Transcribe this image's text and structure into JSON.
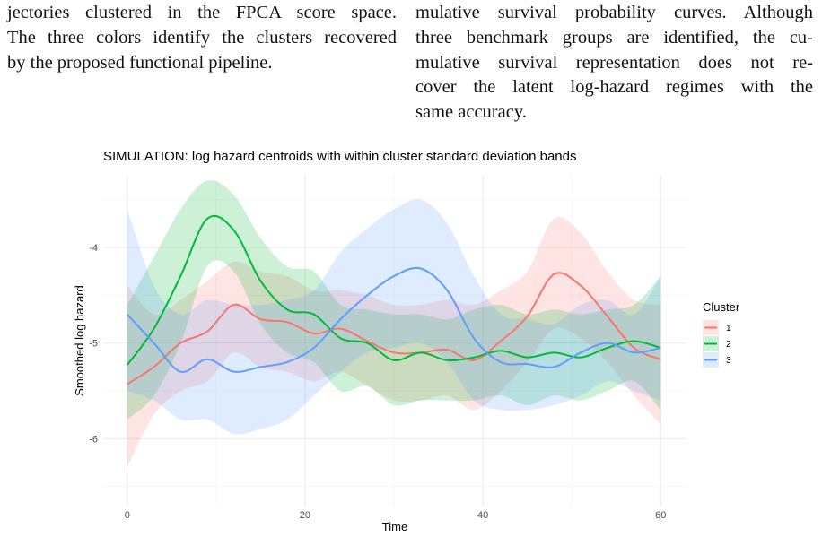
{
  "text": {
    "left_lines": [
      "jectories clustered in the FPCA score space.",
      "The three colors identify the clusters recovered",
      "by the proposed functional pipeline."
    ],
    "right_lines": [
      "mulative survival probability curves. Although",
      "three benchmark groups are identified, the cu-",
      "mulative survival representation does not re-",
      "cover the latent log-hazard regimes with the",
      "same accuracy."
    ]
  },
  "chart_data": {
    "type": "line",
    "title": "SIMULATION: log hazard centroids with within cluster standard deviation bands",
    "x_label": "Time",
    "y_label": "Smoothed log hazard",
    "legend_title": "Cluster",
    "legend_position": "right",
    "grid": true,
    "x": [
      0,
      3,
      6,
      9,
      12,
      15,
      18,
      21,
      24,
      27,
      30,
      33,
      36,
      39,
      42,
      45,
      48,
      51,
      54,
      57,
      60
    ],
    "xlim": [
      -2.7,
      62.9
    ],
    "xticks": [
      0,
      20,
      40,
      60
    ],
    "x_minor_grid": [
      10,
      30,
      50
    ],
    "ylim": [
      -6.71,
      -3.24
    ],
    "yticks": [
      -6,
      -5,
      -4
    ],
    "y_minor_grid": [
      -6.5,
      -5.5,
      -4.5,
      -3.5
    ],
    "series": [
      {
        "name": "1",
        "color": "#F8766D",
        "values": [
          -5.43,
          -5.25,
          -5.0,
          -4.88,
          -4.6,
          -4.75,
          -4.78,
          -4.9,
          -4.85,
          -4.98,
          -5.1,
          -5.1,
          -5.07,
          -5.18,
          -4.98,
          -4.72,
          -4.28,
          -4.4,
          -4.72,
          -5.05,
          -5.17
        ],
        "upper": [
          -4.4,
          -4.7,
          -4.55,
          -4.35,
          -4.15,
          -4.25,
          -4.3,
          -4.45,
          -4.45,
          -4.5,
          -4.6,
          -4.6,
          -4.55,
          -4.6,
          -4.45,
          -4.25,
          -3.7,
          -3.85,
          -4.25,
          -4.55,
          -4.6
        ],
        "lower": [
          -6.3,
          -5.75,
          -5.5,
          -5.4,
          -5.1,
          -5.25,
          -5.3,
          -5.4,
          -5.3,
          -5.45,
          -5.6,
          -5.6,
          -5.55,
          -5.7,
          -5.5,
          -5.2,
          -4.85,
          -4.95,
          -5.2,
          -5.55,
          -5.85
        ]
      },
      {
        "name": "2",
        "color": "#00BA38",
        "values": [
          -5.23,
          -4.85,
          -4.3,
          -3.7,
          -3.82,
          -4.35,
          -4.65,
          -4.7,
          -4.95,
          -5.0,
          -5.18,
          -5.1,
          -5.18,
          -5.15,
          -5.08,
          -5.15,
          -5.1,
          -5.15,
          -5.05,
          -4.98,
          -5.05
        ],
        "upper": [
          -4.6,
          -4.1,
          -3.6,
          -3.3,
          -3.45,
          -3.9,
          -4.2,
          -4.25,
          -4.6,
          -4.65,
          -4.7,
          -4.7,
          -4.75,
          -4.65,
          -4.6,
          -4.7,
          -4.65,
          -4.7,
          -4.65,
          -4.6,
          -4.3
        ],
        "lower": [
          -5.8,
          -5.55,
          -5.0,
          -4.2,
          -4.25,
          -4.8,
          -5.1,
          -5.2,
          -5.5,
          -5.45,
          -5.65,
          -5.6,
          -5.6,
          -5.6,
          -5.55,
          -5.65,
          -5.55,
          -5.6,
          -5.5,
          -5.4,
          -5.7
        ]
      },
      {
        "name": "3",
        "color": "#619CFF",
        "values": [
          -4.7,
          -5.0,
          -5.3,
          -5.17,
          -5.3,
          -5.25,
          -5.2,
          -5.05,
          -4.75,
          -4.5,
          -4.3,
          -4.22,
          -4.45,
          -4.95,
          -5.2,
          -5.22,
          -5.25,
          -5.1,
          -5.0,
          -5.1,
          -5.05
        ],
        "upper": [
          -3.6,
          -4.4,
          -4.7,
          -4.55,
          -4.6,
          -4.6,
          -4.55,
          -4.45,
          -4.05,
          -3.8,
          -3.6,
          -3.5,
          -3.75,
          -4.3,
          -4.7,
          -4.75,
          -4.8,
          -4.6,
          -4.55,
          -4.7,
          -4.3
        ],
        "lower": [
          -5.5,
          -5.6,
          -5.8,
          -5.8,
          -5.95,
          -5.9,
          -5.8,
          -5.55,
          -5.3,
          -5.1,
          -5.05,
          -5.0,
          -5.2,
          -5.6,
          -5.7,
          -5.7,
          -5.65,
          -5.55,
          -5.4,
          -5.5,
          -5.6
        ]
      }
    ]
  }
}
